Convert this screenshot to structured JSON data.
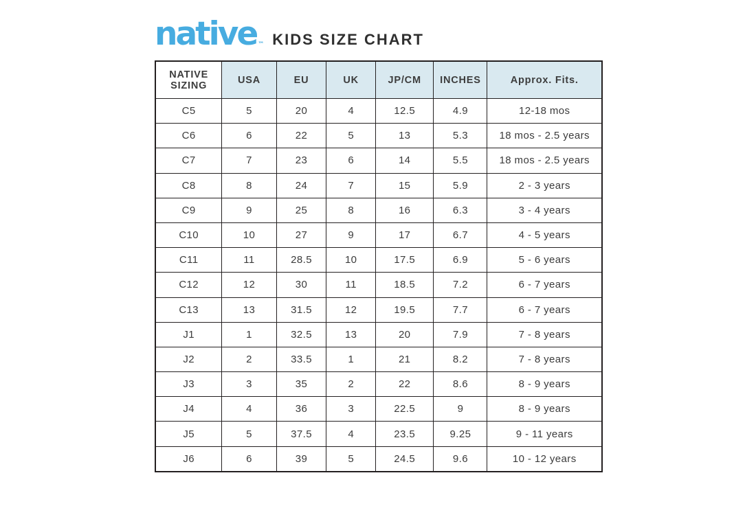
{
  "brand": {
    "logo_text": "native",
    "trademark": "™"
  },
  "page": {
    "title": "KIDS SIZE CHART"
  },
  "colors": {
    "logo_blue": "#47ace0",
    "header_bg": "#d9e9f0",
    "border": "#231f20",
    "text": "#3b3b3b"
  },
  "chart_data": {
    "type": "table",
    "title": "KIDS SIZE CHART",
    "columns": [
      "NATIVE SIZING",
      "USA",
      "EU",
      "UK",
      "JP/CM",
      "INCHES",
      "Approx. Fits."
    ],
    "rows": [
      [
        "C5",
        "5",
        "20",
        "4",
        "12.5",
        "4.9",
        "12-18 mos"
      ],
      [
        "C6",
        "6",
        "22",
        "5",
        "13",
        "5.3",
        "18 mos - 2.5 years"
      ],
      [
        "C7",
        "7",
        "23",
        "6",
        "14",
        "5.5",
        "18 mos - 2.5 years"
      ],
      [
        "C8",
        "8",
        "24",
        "7",
        "15",
        "5.9",
        "2 - 3 years"
      ],
      [
        "C9",
        "9",
        "25",
        "8",
        "16",
        "6.3",
        "3 - 4 years"
      ],
      [
        "C10",
        "10",
        "27",
        "9",
        "17",
        "6.7",
        "4 - 5 years"
      ],
      [
        "C11",
        "11",
        "28.5",
        "10",
        "17.5",
        "6.9",
        "5 - 6 years"
      ],
      [
        "C12",
        "12",
        "30",
        "11",
        "18.5",
        "7.2",
        "6 - 7 years"
      ],
      [
        "C13",
        "13",
        "31.5",
        "12",
        "19.5",
        "7.7",
        "6 - 7 years"
      ],
      [
        "J1",
        "1",
        "32.5",
        "13",
        "20",
        "7.9",
        "7 - 8 years"
      ],
      [
        "J2",
        "2",
        "33.5",
        "1",
        "21",
        "8.2",
        "7 - 8 years"
      ],
      [
        "J3",
        "3",
        "35",
        "2",
        "22",
        "8.6",
        "8 - 9 years"
      ],
      [
        "J4",
        "4",
        "36",
        "3",
        "22.5",
        "9",
        "8 - 9 years"
      ],
      [
        "J5",
        "5",
        "37.5",
        "4",
        "23.5",
        "9.25",
        "9 - 11 years"
      ],
      [
        "J6",
        "6",
        "39",
        "5",
        "24.5",
        "9.6",
        "10 - 12 years"
      ]
    ],
    "column_widths_pct": [
      14.9,
      12.2,
      11.2,
      11.0,
      13.0,
      12.0,
      25.7
    ],
    "layout_hints": {
      "header_background": "#d9e9f0",
      "first_header_cell_background": "#ffffff",
      "grid": true
    }
  }
}
